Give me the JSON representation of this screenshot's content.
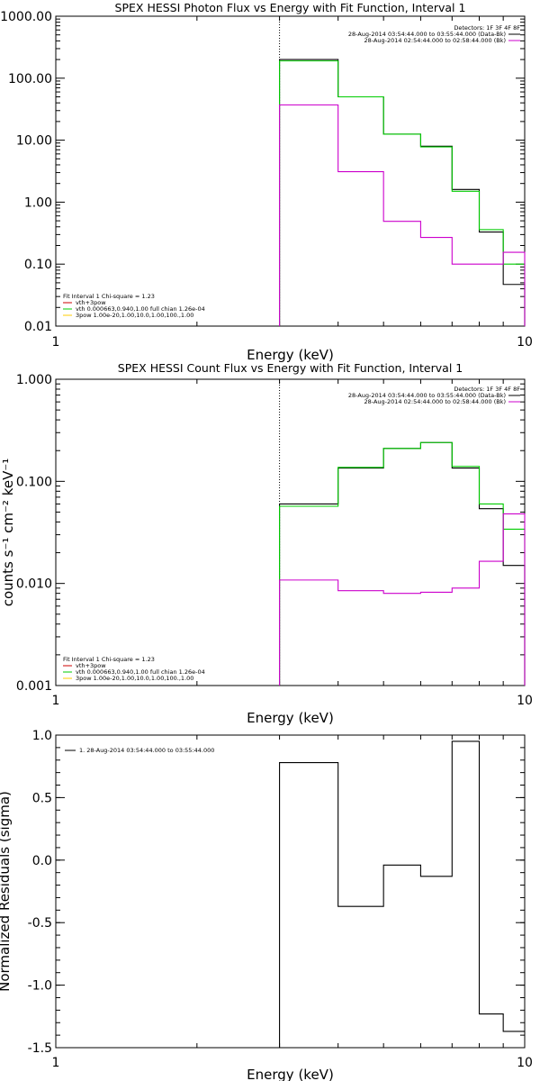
{
  "chart_data": [
    {
      "type": "line",
      "title": "SPEX HESSI Photon Flux vs Energy with Fit Function, Interval 1",
      "xlabel": "Energy (keV)",
      "ylabel": "",
      "xscale": "log",
      "yscale": "log",
      "xlim": [
        1,
        10
      ],
      "ylim": [
        0.01,
        1000
      ],
      "xticks": [
        "1",
        "10"
      ],
      "yticks": [
        "0.01",
        "0.10",
        "1.00",
        "10.00",
        "100.00",
        "1000.00"
      ],
      "grid": false,
      "fit_start_energy": 3,
      "legend_top_right": {
        "header": "Detectors: 1F 3F 4F 8F",
        "entries": [
          {
            "label": "28-Aug-2014 03:54:44.000 to 03:55:44.000 (Data-Bk)",
            "color": "#000000"
          },
          {
            "label": "28-Aug-2014 02:54:44.000 to 02:58:44.000 (Bk)",
            "color": "#cc00cc"
          }
        ]
      },
      "legend_bottom_left": {
        "header": "Fit Interval 1   Chi-square = 1.23",
        "entries": [
          {
            "label": "vth+3pow",
            "color": "#cc0000"
          },
          {
            "label": "vth 0.000663,0.940,1.00  full chian 1.26e-04",
            "color": "#00cc00"
          },
          {
            "label": "3pow 1.00e-20,1.00,10.0,1.00,100.,1.00",
            "color": "#ffcc00"
          }
        ]
      },
      "bin_edges": [
        3,
        4,
        5,
        6,
        7,
        8,
        9,
        10
      ],
      "series": [
        {
          "color": "#000000",
          "values": [
            200,
            50,
            12.5,
            8,
            1.6,
            0.33,
            0.047
          ]
        },
        {
          "color": "#00cc00",
          "values": [
            190,
            50,
            12.5,
            7.8,
            1.5,
            0.36,
            0.1
          ]
        },
        {
          "color": "#cc00cc",
          "values": [
            37,
            3.1,
            0.49,
            0.27,
            0.1,
            0.1,
            0.155
          ]
        }
      ]
    },
    {
      "type": "line",
      "title": "SPEX HESSI Count Flux vs Energy with Fit Function, Interval 1",
      "xlabel": "Energy (keV)",
      "ylabel": "counts s⁻¹ cm⁻² keV⁻¹",
      "xscale": "log",
      "yscale": "log",
      "xlim": [
        1,
        10
      ],
      "ylim": [
        0.001,
        1
      ],
      "xticks": [
        "1",
        "10"
      ],
      "yticks": [
        "0.001",
        "0.010",
        "0.100",
        "1.000"
      ],
      "grid": false,
      "fit_start_energy": 3,
      "legend_top_right": {
        "header": "Detectors: 1F 3F 4F 8F",
        "entries": [
          {
            "label": "28-Aug-2014 03:54:44.000 to 03:55:44.000 (Data-Bk)",
            "color": "#000000"
          },
          {
            "label": "28-Aug-2014 02:54:44.000 to 02:58:44.000 (Bk)",
            "color": "#cc00cc"
          }
        ]
      },
      "legend_bottom_left": {
        "header": "Fit Interval 1   Chi-square = 1.23",
        "entries": [
          {
            "label": "vth+3pow",
            "color": "#cc0000"
          },
          {
            "label": "vth 0.000663,0.940,1.00  full chian 1.26e-04",
            "color": "#00cc00"
          },
          {
            "label": "3pow 1.00e-20,1.00,10.0,1.00,100.,1.00",
            "color": "#ffcc00"
          }
        ]
      },
      "bin_edges": [
        3,
        4,
        5,
        6,
        7,
        8,
        9,
        10
      ],
      "series": [
        {
          "color": "#000000",
          "values": [
            0.06,
            0.135,
            0.21,
            0.24,
            0.135,
            0.054,
            0.015
          ]
        },
        {
          "color": "#00cc00",
          "values": [
            0.057,
            0.137,
            0.21,
            0.24,
            0.14,
            0.06,
            0.034
          ]
        },
        {
          "color": "#cc00cc",
          "values": [
            0.0108,
            0.0085,
            0.008,
            0.0082,
            0.009,
            0.0165,
            0.048
          ]
        }
      ]
    },
    {
      "type": "line",
      "title": "",
      "xlabel": "Energy (keV)",
      "ylabel": "Normalized Residuals (sigma)",
      "xscale": "log",
      "yscale": "linear",
      "xlim": [
        1,
        10
      ],
      "ylim": [
        -1.5,
        1.0
      ],
      "xticks": [
        "1",
        "10"
      ],
      "yticks": [
        "-1.5",
        "-1.0",
        "-0.5",
        "0.0",
        "0.5",
        "1.0"
      ],
      "grid": false,
      "legend_top_left": {
        "entries": [
          {
            "label": "1. 28-Aug-2014 03:54:44.000 to 03:55:44.000",
            "color": "#000000"
          }
        ]
      },
      "bin_edges": [
        3,
        4,
        5,
        6,
        7,
        8,
        9,
        10
      ],
      "series": [
        {
          "color": "#000000",
          "values": [
            0.78,
            -0.37,
            -0.04,
            -0.13,
            0.95,
            -1.23,
            -1.37
          ]
        }
      ]
    }
  ]
}
